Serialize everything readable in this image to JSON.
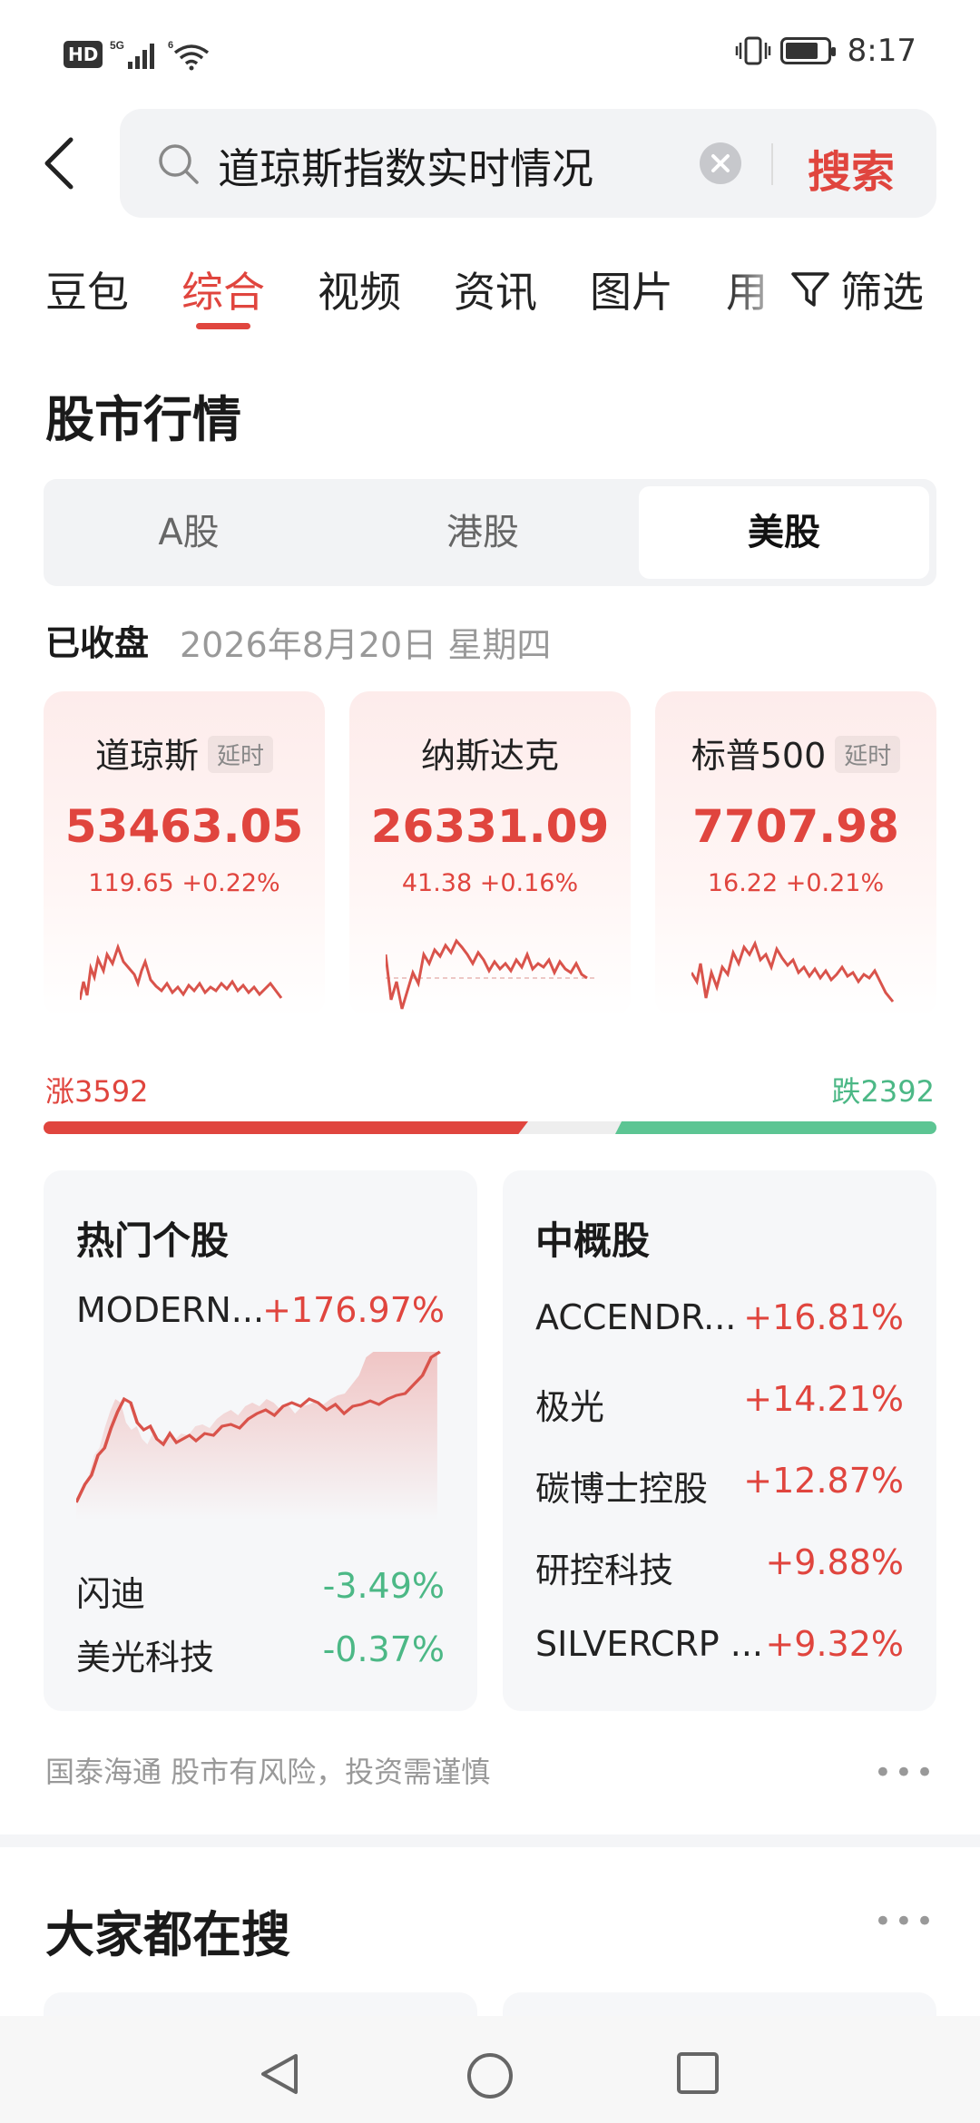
{
  "status_bar": {
    "network": "HD",
    "signal_label": "5G",
    "wifi_label": "6",
    "time": "8:17"
  },
  "search": {
    "query": "道琼斯指数实时情况",
    "button": "搜索"
  },
  "tabs": [
    "豆包",
    "综合",
    "视频",
    "资讯",
    "图片",
    "用"
  ],
  "active_tab": "综合",
  "filter_label": "筛选",
  "section_title": "股市行情",
  "market_tabs": [
    "A股",
    "港股",
    "美股"
  ],
  "active_market": "美股",
  "status": {
    "label": "已收盘",
    "date": "2026年8月20日 星期四"
  },
  "indices": [
    {
      "name": "道琼斯",
      "tag": "延时",
      "value": "53463.05",
      "change": "119.65 +0.22%"
    },
    {
      "name": "纳斯达克",
      "tag": "",
      "value": "26331.09",
      "change": "41.38 +0.16%"
    },
    {
      "name": "标普500",
      "tag": "延时",
      "value": "7707.98",
      "change": "16.22 +0.21%"
    }
  ],
  "breadth": {
    "rise_label": "涨3592",
    "fall_label": "跌2392",
    "rise": 3592,
    "fall": 2392
  },
  "hot_stocks": {
    "title": "热门个股",
    "top": {
      "name": "MODERN...",
      "change": "+176.97%"
    },
    "others": [
      {
        "name": "闪迪",
        "change": "-3.49%"
      },
      {
        "name": "美光科技",
        "change": "-0.37%"
      }
    ]
  },
  "china_concepts": {
    "title": "中概股",
    "items": [
      {
        "name": "ACCENDR...",
        "change": "+16.81%"
      },
      {
        "name": "极光",
        "change": "+14.21%"
      },
      {
        "name": "碳博士控股",
        "change": "+12.87%"
      },
      {
        "name": "研控科技",
        "change": "+9.88%"
      },
      {
        "name": "SILVERCRP ...",
        "change": "+9.32%"
      }
    ]
  },
  "disclaimer": "国泰海通 股市有风险，投资需谨慎",
  "section2_title": "大家都在搜",
  "colors": {
    "up": "#e0453e",
    "down": "#4cb886",
    "accent": "#e0453e"
  }
}
